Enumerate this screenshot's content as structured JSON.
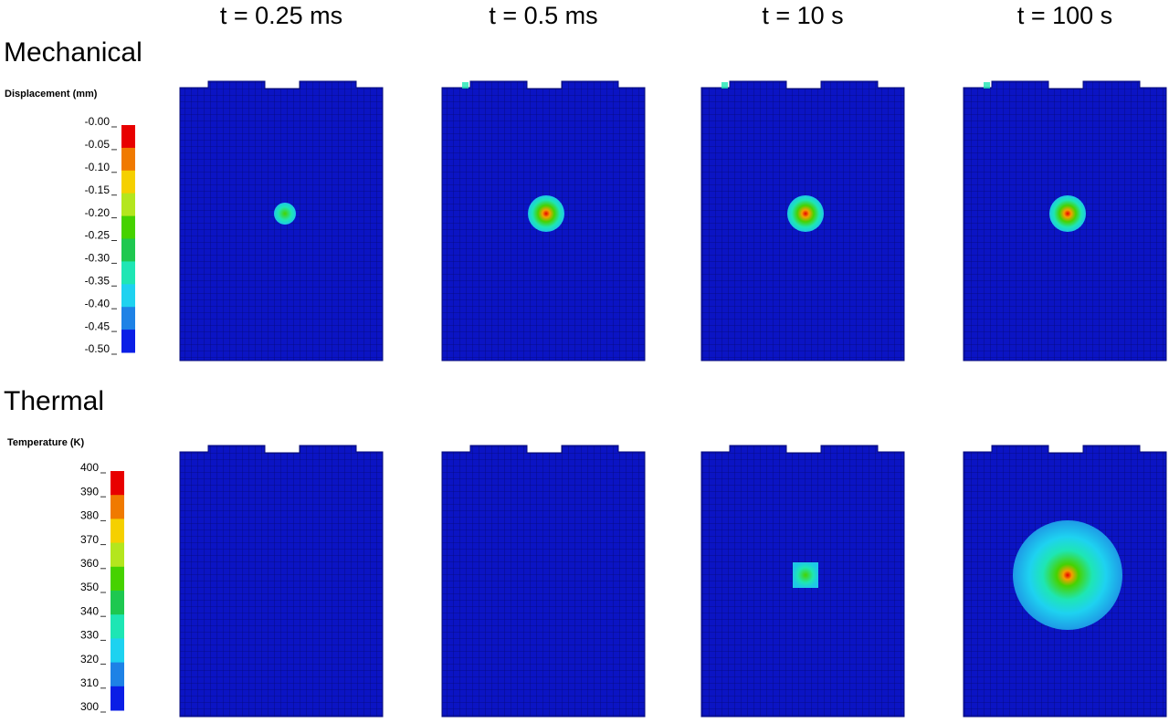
{
  "columns": [
    "t = 0.25 ms",
    "t = 0.5 ms",
    "t = 10 s",
    "t = 100 s"
  ],
  "rows": [
    {
      "label": "Mechanical",
      "colorbar": {
        "title": "Displacement (mm)",
        "ticks": [
          "-0.00",
          "-0.05",
          "-0.10",
          "-0.15",
          "-0.20",
          "-0.25",
          "-0.30",
          "-0.35",
          "-0.40",
          "-0.45",
          "-0.50"
        ],
        "colors": [
          "#e80000",
          "#f07a00",
          "#f5d000",
          "#b4e61e",
          "#46d200",
          "#1ec850",
          "#1ee6b4",
          "#1ed2f0",
          "#1e82e6",
          "#0a1ee6"
        ]
      }
    },
    {
      "label": "Thermal",
      "colorbar": {
        "title": "Temperature (K)",
        "ticks": [
          400,
          390,
          380,
          370,
          360,
          350,
          340,
          330,
          320,
          310,
          300
        ],
        "colors": [
          "#e80000",
          "#f07a00",
          "#f5d000",
          "#b4e61e",
          "#46d200",
          "#1ec850",
          "#1ee6b4",
          "#1ed2f0",
          "#1e82e6",
          "#0a1ee6"
        ]
      }
    }
  ]
}
